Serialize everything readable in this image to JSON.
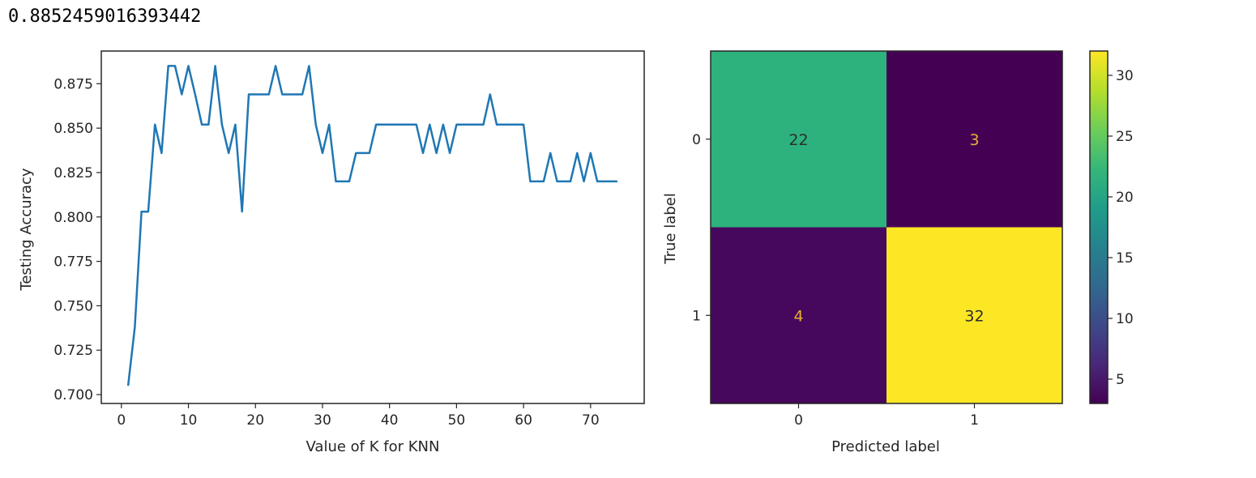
{
  "output": {
    "text": "0.8852459016393442"
  },
  "colors": {
    "line": "#1f77b4",
    "axis": "#262626",
    "cm_text_dark": "#2d2d2d",
    "cm_text_light": "#e8b030"
  },
  "chart_data": [
    {
      "type": "line",
      "title": "",
      "xlabel": "Value of K for KNN",
      "ylabel": "Testing Accuracy",
      "xlim": [
        -3,
        78
      ],
      "ylim": [
        0.695,
        0.8934
      ],
      "x_ticks": [
        0,
        10,
        20,
        30,
        40,
        50,
        60,
        70
      ],
      "x_tick_labels": [
        "0",
        "10",
        "20",
        "30",
        "40",
        "50",
        "60",
        "70"
      ],
      "y_ticks": [
        0.7,
        0.725,
        0.75,
        0.775,
        0.8,
        0.825,
        0.85,
        0.875
      ],
      "y_tick_labels": [
        "0.700",
        "0.725",
        "0.750",
        "0.775",
        "0.800",
        "0.825",
        "0.850",
        "0.875"
      ],
      "grid": false,
      "series": [
        {
          "x": [
            1,
            2,
            3,
            4,
            5,
            6,
            7,
            8,
            9,
            10,
            11,
            12,
            13,
            14,
            15,
            16,
            17,
            18,
            19,
            20,
            21,
            22,
            23,
            24,
            25,
            26,
            27,
            28,
            29,
            30,
            31,
            32,
            33,
            34,
            35,
            36,
            37,
            38,
            39,
            40,
            41,
            42,
            43,
            44,
            45,
            46,
            47,
            48,
            49,
            50,
            51,
            52,
            53,
            54,
            55,
            56,
            57,
            58,
            59,
            60,
            61,
            62,
            63,
            64,
            65,
            66,
            67,
            68,
            69,
            70,
            71,
            72,
            73,
            74
          ],
          "values": [
            0.705,
            0.738,
            0.803,
            0.803,
            0.852,
            0.836,
            0.885,
            0.885,
            0.869,
            0.885,
            0.869,
            0.852,
            0.852,
            0.885,
            0.852,
            0.836,
            0.852,
            0.803,
            0.869,
            0.869,
            0.869,
            0.869,
            0.885,
            0.869,
            0.869,
            0.869,
            0.869,
            0.885,
            0.852,
            0.836,
            0.852,
            0.82,
            0.82,
            0.82,
            0.836,
            0.836,
            0.836,
            0.852,
            0.852,
            0.852,
            0.852,
            0.852,
            0.852,
            0.852,
            0.836,
            0.852,
            0.836,
            0.852,
            0.836,
            0.852,
            0.852,
            0.852,
            0.852,
            0.852,
            0.869,
            0.852,
            0.852,
            0.852,
            0.852,
            0.852,
            0.82,
            0.82,
            0.82,
            0.836,
            0.82,
            0.82,
            0.82,
            0.836,
            0.82,
            0.836,
            0.82,
            0.82,
            0.82,
            0.82
          ]
        }
      ]
    },
    {
      "type": "heatmap",
      "title": "",
      "xlabel": "Predicted label",
      "ylabel": "True label",
      "x_tick_labels": [
        "0",
        "1"
      ],
      "y_tick_labels": [
        "0",
        "1"
      ],
      "matrix": [
        [
          22,
          3
        ],
        [
          4,
          32
        ]
      ],
      "cell_colors": [
        [
          "#2db27d",
          "#440154"
        ],
        [
          "#46085c",
          "#fde725"
        ]
      ],
      "colorbar": {
        "range": [
          3,
          32
        ],
        "ticks": [
          5,
          10,
          15,
          20,
          25,
          30
        ],
        "tick_labels": [
          "5",
          "10",
          "15",
          "20",
          "25",
          "30"
        ],
        "colors": [
          "#440154",
          "#482878",
          "#3e4989",
          "#31688e",
          "#26828e",
          "#1f9e89",
          "#35b779",
          "#6ece58",
          "#b5de2b",
          "#fde725"
        ]
      }
    }
  ]
}
